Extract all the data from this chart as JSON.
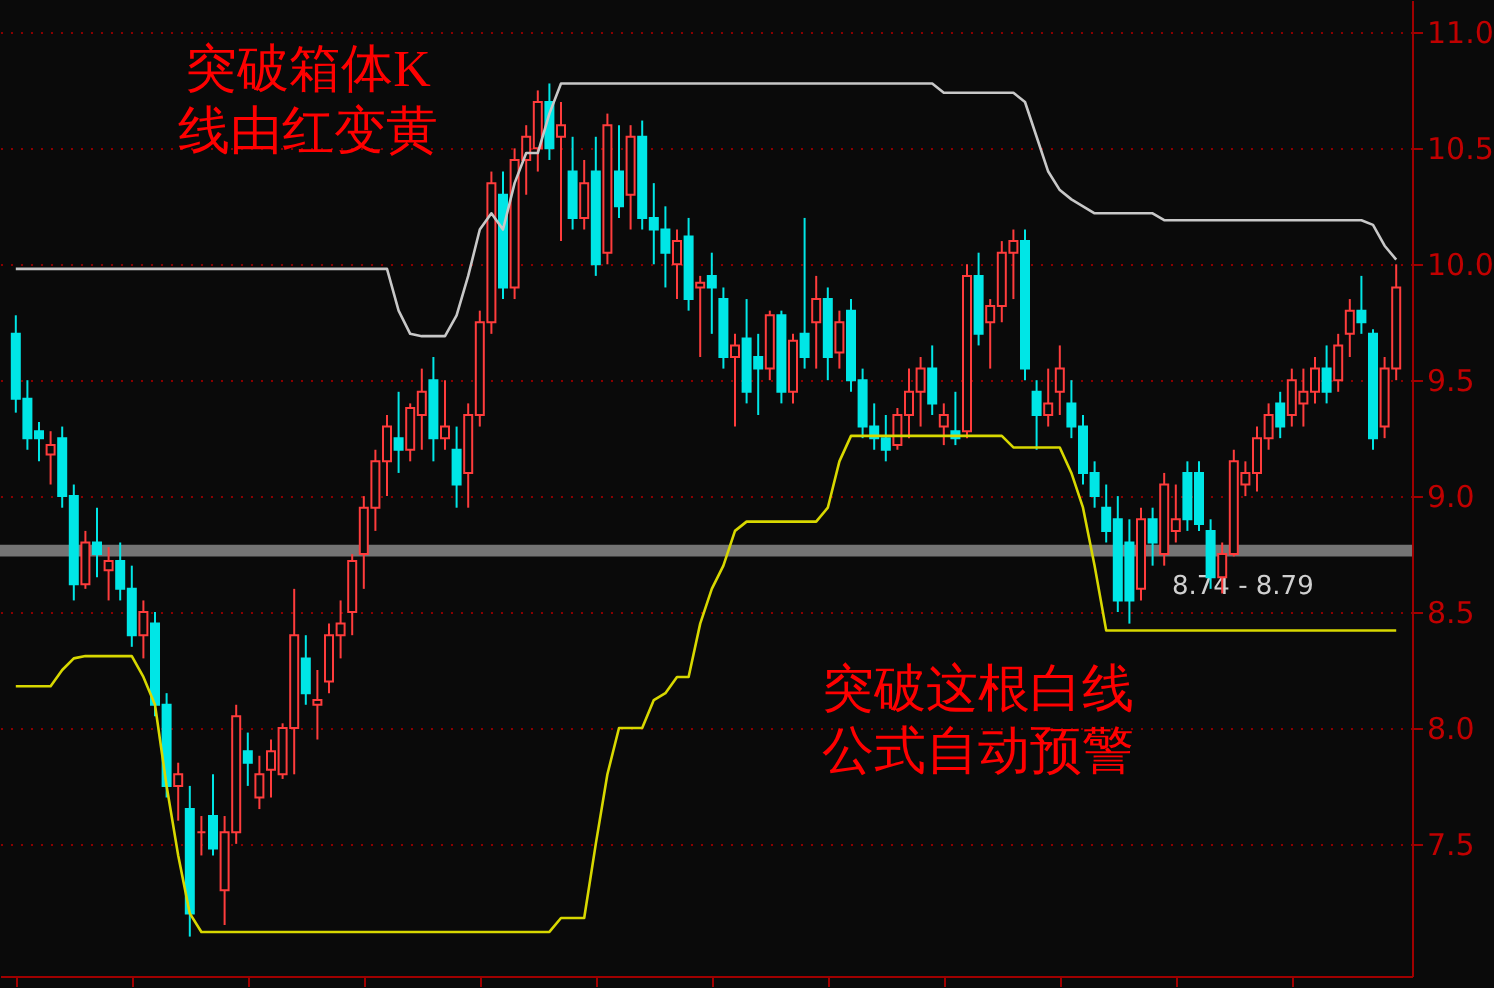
{
  "chart_data": {
    "type": "candlestick",
    "categories": [
      null,
      null,
      null,
      null,
      null,
      null,
      null,
      null,
      null,
      null,
      null,
      null,
      null,
      null,
      null,
      null,
      null,
      null,
      null,
      null,
      null,
      null,
      null,
      null,
      null,
      null,
      null,
      null,
      null,
      null,
      null,
      null,
      null,
      null,
      null,
      null,
      null,
      null,
      null,
      null,
      null,
      null,
      null,
      null,
      null,
      null,
      null,
      null,
      null,
      null,
      null,
      null,
      null,
      null,
      null,
      null,
      null,
      null,
      null,
      null,
      null,
      null,
      null,
      null,
      null,
      null,
      null,
      null,
      null,
      null,
      null,
      null,
      null,
      null,
      null,
      null,
      null,
      null,
      null,
      null,
      null,
      null,
      null,
      null,
      null,
      null,
      null,
      null,
      null,
      null,
      null,
      null,
      null,
      null,
      null,
      null,
      null,
      null,
      null,
      null,
      null,
      null,
      null,
      null,
      null,
      null,
      null,
      null,
      null,
      null,
      null,
      null,
      null,
      null,
      null,
      null,
      null,
      null,
      null,
      null
    ],
    "ohlc": [
      [
        9.7,
        9.78,
        9.36,
        9.42
      ],
      [
        9.42,
        9.5,
        9.2,
        9.25
      ],
      [
        9.28,
        9.32,
        9.15,
        9.25
      ],
      [
        9.18,
        9.28,
        9.05,
        9.22
      ],
      [
        9.25,
        9.3,
        8.95,
        9.0
      ],
      [
        9.0,
        9.05,
        8.55,
        8.62
      ],
      [
        8.62,
        8.85,
        8.6,
        8.8
      ],
      [
        8.8,
        8.95,
        8.65,
        8.75
      ],
      [
        8.68,
        8.78,
        8.55,
        8.72
      ],
      [
        8.72,
        8.8,
        8.55,
        8.6
      ],
      [
        8.6,
        8.7,
        8.35,
        8.4
      ],
      [
        8.4,
        8.55,
        8.3,
        8.5
      ],
      [
        8.45,
        8.5,
        8.05,
        8.1
      ],
      [
        8.1,
        8.15,
        7.7,
        7.75
      ],
      [
        7.75,
        7.85,
        7.6,
        7.8
      ],
      [
        7.65,
        7.75,
        7.1,
        7.2
      ],
      [
        7.55,
        7.62,
        7.45,
        7.55
      ],
      [
        7.62,
        7.8,
        7.45,
        7.48
      ],
      [
        7.3,
        7.62,
        7.15,
        7.55
      ],
      [
        7.55,
        8.1,
        7.5,
        8.05
      ],
      [
        7.9,
        7.98,
        7.75,
        7.85
      ],
      [
        7.7,
        7.88,
        7.65,
        7.8
      ],
      [
        7.82,
        7.95,
        7.7,
        7.9
      ],
      [
        7.8,
        8.02,
        7.78,
        8.0
      ],
      [
        8.0,
        8.6,
        7.8,
        8.4
      ],
      [
        8.3,
        8.4,
        8.1,
        8.15
      ],
      [
        8.1,
        8.25,
        7.95,
        8.12
      ],
      [
        8.2,
        8.45,
        8.15,
        8.4
      ],
      [
        8.4,
        8.55,
        8.3,
        8.45
      ],
      [
        8.5,
        8.75,
        8.4,
        8.72
      ],
      [
        8.75,
        9.0,
        8.6,
        8.95
      ],
      [
        8.95,
        9.2,
        8.85,
        9.15
      ],
      [
        9.15,
        9.35,
        9.0,
        9.3
      ],
      [
        9.25,
        9.45,
        9.1,
        9.2
      ],
      [
        9.2,
        9.4,
        9.15,
        9.38
      ],
      [
        9.35,
        9.55,
        9.2,
        9.45
      ],
      [
        9.5,
        9.6,
        9.15,
        9.25
      ],
      [
        9.25,
        9.5,
        9.2,
        9.3
      ],
      [
        9.2,
        9.3,
        8.95,
        9.05
      ],
      [
        9.1,
        9.4,
        8.95,
        9.35
      ],
      [
        9.35,
        9.8,
        9.3,
        9.75
      ],
      [
        9.75,
        10.4,
        9.7,
        10.35
      ],
      [
        10.3,
        10.4,
        9.85,
        9.9
      ],
      [
        9.9,
        10.5,
        9.85,
        10.45
      ],
      [
        10.45,
        10.6,
        10.3,
        10.55
      ],
      [
        10.5,
        10.75,
        10.4,
        10.7
      ],
      [
        10.7,
        10.78,
        10.45,
        10.5
      ],
      [
        10.55,
        10.7,
        10.1,
        10.6
      ],
      [
        10.4,
        10.55,
        10.15,
        10.2
      ],
      [
        10.2,
        10.45,
        10.15,
        10.35
      ],
      [
        10.4,
        10.55,
        9.95,
        10.0
      ],
      [
        10.05,
        10.65,
        10.0,
        10.6
      ],
      [
        10.4,
        10.6,
        10.2,
        10.25
      ],
      [
        10.3,
        10.6,
        10.15,
        10.55
      ],
      [
        10.55,
        10.62,
        10.15,
        10.2
      ],
      [
        10.2,
        10.35,
        10.0,
        10.15
      ],
      [
        10.15,
        10.25,
        9.9,
        10.05
      ],
      [
        10.0,
        10.15,
        9.85,
        10.1
      ],
      [
        10.12,
        10.2,
        9.8,
        9.85
      ],
      [
        9.9,
        9.95,
        9.6,
        9.92
      ],
      [
        9.95,
        10.05,
        9.7,
        9.9
      ],
      [
        9.85,
        9.9,
        9.55,
        9.6
      ],
      [
        9.6,
        9.7,
        9.3,
        9.65
      ],
      [
        9.68,
        9.85,
        9.4,
        9.45
      ],
      [
        9.6,
        9.7,
        9.35,
        9.55
      ],
      [
        9.55,
        9.8,
        9.5,
        9.78
      ],
      [
        9.78,
        9.8,
        9.4,
        9.45
      ],
      [
        9.45,
        9.7,
        9.4,
        9.67
      ],
      [
        9.7,
        10.2,
        9.55,
        9.6
      ],
      [
        9.75,
        9.95,
        9.55,
        9.85
      ],
      [
        9.85,
        9.9,
        9.5,
        9.6
      ],
      [
        9.62,
        9.8,
        9.55,
        9.75
      ],
      [
        9.8,
        9.85,
        9.45,
        9.5
      ],
      [
        9.5,
        9.55,
        9.25,
        9.3
      ],
      [
        9.3,
        9.4,
        9.2,
        9.25
      ],
      [
        9.25,
        9.35,
        9.15,
        9.2
      ],
      [
        9.22,
        9.38,
        9.2,
        9.35
      ],
      [
        9.35,
        9.55,
        9.25,
        9.45
      ],
      [
        9.45,
        9.6,
        9.3,
        9.55
      ],
      [
        9.55,
        9.65,
        9.35,
        9.4
      ],
      [
        9.3,
        9.4,
        9.22,
        9.35
      ],
      [
        9.28,
        9.45,
        9.22,
        9.25
      ],
      [
        9.28,
        10.0,
        9.25,
        9.95
      ],
      [
        9.95,
        10.05,
        9.65,
        9.7
      ],
      [
        9.75,
        9.85,
        9.55,
        9.82
      ],
      [
        9.82,
        10.1,
        9.75,
        10.05
      ],
      [
        10.05,
        10.15,
        9.85,
        10.1
      ],
      [
        10.1,
        10.15,
        9.5,
        9.55
      ],
      [
        9.45,
        9.5,
        9.2,
        9.35
      ],
      [
        9.35,
        9.55,
        9.3,
        9.4
      ],
      [
        9.45,
        9.65,
        9.35,
        9.55
      ],
      [
        9.4,
        9.5,
        9.25,
        9.3
      ],
      [
        9.3,
        9.35,
        9.05,
        9.1
      ],
      [
        9.1,
        9.15,
        8.95,
        9.0
      ],
      [
        8.95,
        9.05,
        8.8,
        8.85
      ],
      [
        8.9,
        9.0,
        8.5,
        8.55
      ],
      [
        8.8,
        8.9,
        8.45,
        8.55
      ],
      [
        8.6,
        8.95,
        8.55,
        8.9
      ],
      [
        8.9,
        8.95,
        8.7,
        8.8
      ],
      [
        8.75,
        9.1,
        8.7,
        9.05
      ],
      [
        8.85,
        9.05,
        8.8,
        8.9
      ],
      [
        9.1,
        9.15,
        8.85,
        8.9
      ],
      [
        9.1,
        9.15,
        8.85,
        8.88
      ],
      [
        8.85,
        8.9,
        8.6,
        8.65
      ],
      [
        8.65,
        8.8,
        8.58,
        8.75
      ],
      [
        8.75,
        9.2,
        8.74,
        9.15
      ],
      [
        9.05,
        9.15,
        9.0,
        9.1
      ],
      [
        9.1,
        9.3,
        9.02,
        9.25
      ],
      [
        9.25,
        9.4,
        9.2,
        9.35
      ],
      [
        9.4,
        9.45,
        9.25,
        9.3
      ],
      [
        9.35,
        9.55,
        9.3,
        9.5
      ],
      [
        9.4,
        9.55,
        9.3,
        9.45
      ],
      [
        9.45,
        9.6,
        9.4,
        9.55
      ],
      [
        9.55,
        9.65,
        9.4,
        9.45
      ],
      [
        9.5,
        9.7,
        9.45,
        9.65
      ],
      [
        9.7,
        9.85,
        9.6,
        9.8
      ],
      [
        9.8,
        9.95,
        9.7,
        9.75
      ],
      [
        9.7,
        9.72,
        9.2,
        9.25
      ],
      [
        9.3,
        9.6,
        9.25,
        9.55
      ],
      [
        9.55,
        10.0,
        9.5,
        9.9
      ]
    ],
    "series": [
      {
        "type": "line",
        "color": "#c8c8c8",
        "values": [
          9.98,
          9.98,
          9.98,
          9.98,
          9.98,
          9.98,
          9.98,
          9.98,
          9.98,
          9.98,
          9.98,
          9.98,
          9.98,
          9.98,
          9.98,
          9.98,
          9.98,
          9.98,
          9.98,
          9.98,
          9.98,
          9.98,
          9.98,
          9.98,
          9.98,
          9.98,
          9.98,
          9.98,
          9.98,
          9.98,
          9.98,
          9.98,
          9.98,
          9.8,
          9.7,
          9.69,
          9.69,
          9.69,
          9.78,
          9.95,
          10.15,
          10.22,
          10.15,
          10.35,
          10.48,
          10.48,
          10.65,
          10.78,
          10.78,
          10.78,
          10.78,
          10.78,
          10.78,
          10.78,
          10.78,
          10.78,
          10.78,
          10.78,
          10.78,
          10.78,
          10.78,
          10.78,
          10.78,
          10.78,
          10.78,
          10.78,
          10.78,
          10.78,
          10.78,
          10.78,
          10.78,
          10.78,
          10.78,
          10.78,
          10.78,
          10.78,
          10.78,
          10.78,
          10.78,
          10.78,
          10.74,
          10.74,
          10.74,
          10.74,
          10.74,
          10.74,
          10.74,
          10.7,
          10.55,
          10.4,
          10.32,
          10.28,
          10.25,
          10.22,
          10.22,
          10.22,
          10.22,
          10.22,
          10.22,
          10.19,
          10.19,
          10.19,
          10.19,
          10.19,
          10.19,
          10.19,
          10.19,
          10.19,
          10.19,
          10.19,
          10.19,
          10.19,
          10.19,
          10.19,
          10.19,
          10.19,
          10.19,
          10.17,
          10.08,
          10.02
        ]
      },
      {
        "type": "line",
        "color": "#d8d800",
        "values": [
          8.18,
          8.18,
          8.18,
          8.18,
          8.25,
          8.3,
          8.31,
          8.31,
          8.31,
          8.31,
          8.31,
          8.22,
          8.1,
          7.75,
          7.45,
          7.2,
          7.12,
          7.12,
          7.12,
          7.12,
          7.12,
          7.12,
          7.12,
          7.12,
          7.12,
          7.12,
          7.12,
          7.12,
          7.12,
          7.12,
          7.12,
          7.12,
          7.12,
          7.12,
          7.12,
          7.12,
          7.12,
          7.12,
          7.12,
          7.12,
          7.12,
          7.12,
          7.12,
          7.12,
          7.12,
          7.12,
          7.12,
          7.18,
          7.18,
          7.18,
          7.5,
          7.8,
          8.0,
          8.0,
          8.0,
          8.12,
          8.15,
          8.22,
          8.22,
          8.45,
          8.6,
          8.7,
          8.85,
          8.89,
          8.89,
          8.89,
          8.89,
          8.89,
          8.89,
          8.89,
          8.95,
          9.15,
          9.26,
          9.26,
          9.26,
          9.26,
          9.26,
          9.26,
          9.26,
          9.26,
          9.26,
          9.26,
          9.26,
          9.26,
          9.26,
          9.26,
          9.21,
          9.21,
          9.21,
          9.21,
          9.21,
          9.1,
          8.95,
          8.7,
          8.42,
          8.42,
          8.42,
          8.42,
          8.42,
          8.42,
          8.42,
          8.42,
          8.42,
          8.42,
          8.42,
          8.42,
          8.42,
          8.42,
          8.42,
          8.42,
          8.42,
          8.42,
          8.42,
          8.42,
          8.42,
          8.42,
          8.42,
          8.42,
          8.42,
          8.42
        ]
      }
    ],
    "ylim": [
      6.93,
      11.14
    ],
    "yticks": [
      7.5,
      {
        "value": 8,
        "label": "8.0"
      },
      8.5,
      {
        "value": 9,
        "label": "9.0"
      },
      9.5,
      {
        "value": 10,
        "label": "10.0"
      },
      10.5,
      {
        "value": 11,
        "label": "11.0"
      }
    ],
    "grid": "y",
    "tick_labels": "y",
    "bands": [
      {
        "axis": "y",
        "from": 8.74,
        "to": 8.79,
        "label": "8.74 - 8.79",
        "color": "#808080"
      }
    ],
    "annotations": [
      "突破箱体K线由红变黄",
      "突破这根白线公式自动预警"
    ]
  }
}
